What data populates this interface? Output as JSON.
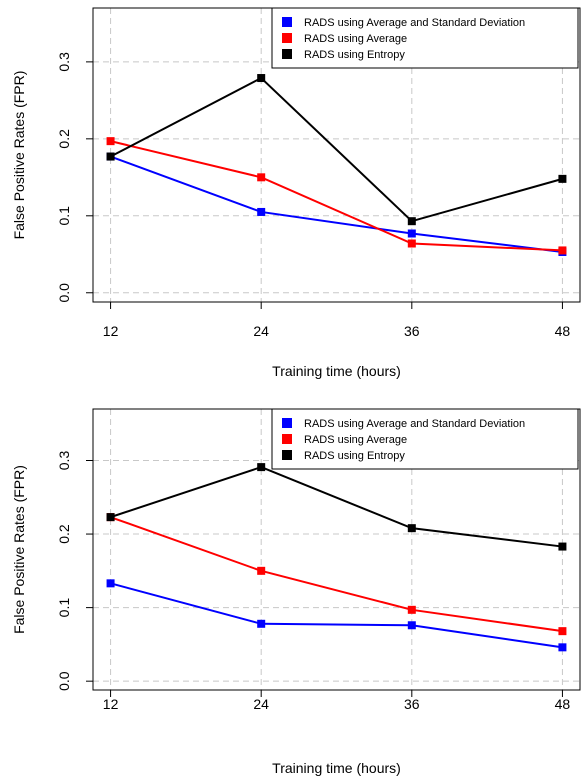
{
  "chart_data": [
    {
      "type": "line",
      "title": "",
      "xlabel": "Training time (hours)",
      "ylabel": "False Positive Rates (FPR)",
      "categories": [
        "12",
        "24",
        "36",
        "48"
      ],
      "x": [
        12,
        24,
        36,
        48
      ],
      "xlim": [
        10.6,
        49.4
      ],
      "ylim": [
        -0.012,
        0.37
      ],
      "yticks": [
        "0.0",
        "0.1",
        "0.2",
        "0.3"
      ],
      "grid": true,
      "legend_position": "top-right",
      "series": [
        {
          "name": "RADS using Average and Standard Deviation",
          "color": "#0000ff",
          "values": [
            0.177,
            0.105,
            0.077,
            0.053
          ]
        },
        {
          "name": "RADS using Average",
          "color": "#ff0000",
          "values": [
            0.197,
            0.15,
            0.064,
            0.055
          ]
        },
        {
          "name": "RADS using Entropy",
          "color": "#000000",
          "values": [
            0.177,
            0.279,
            0.093,
            0.148
          ]
        }
      ]
    },
    {
      "type": "line",
      "title": "",
      "xlabel": "Training time (hours)",
      "ylabel": "False Positive Rates (FPR)",
      "categories": [
        "12",
        "24",
        "36",
        "48"
      ],
      "x": [
        12,
        24,
        36,
        48
      ],
      "xlim": [
        10.6,
        49.4
      ],
      "ylim": [
        -0.012,
        0.37
      ],
      "yticks": [
        "0.0",
        "0.1",
        "0.2",
        "0.3"
      ],
      "grid": true,
      "legend_position": "top-right",
      "series": [
        {
          "name": "RADS using Average and Standard Deviation",
          "color": "#0000ff",
          "values": [
            0.133,
            0.078,
            0.076,
            0.046
          ]
        },
        {
          "name": "RADS using Average",
          "color": "#ff0000",
          "values": [
            0.223,
            0.15,
            0.097,
            0.068
          ]
        },
        {
          "name": "RADS using Entropy",
          "color": "#000000",
          "values": [
            0.223,
            0.291,
            0.208,
            0.183
          ]
        }
      ]
    }
  ]
}
